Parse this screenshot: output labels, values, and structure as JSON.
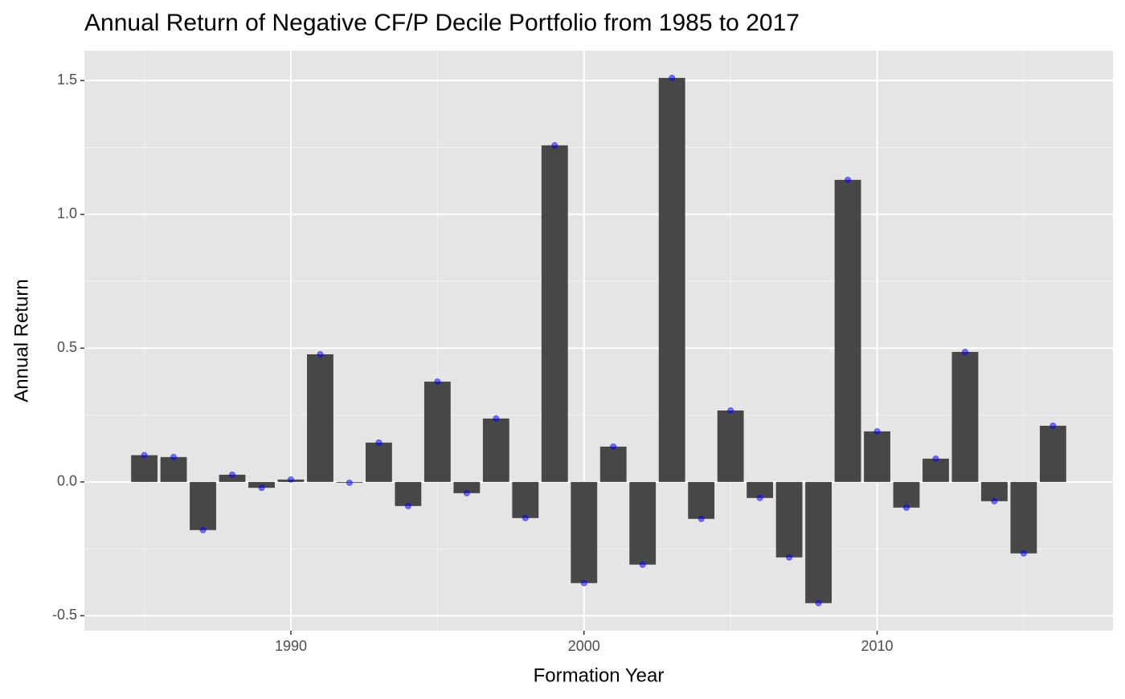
{
  "chart_data": {
    "type": "bar",
    "title": "Annual Return of Negative CF/P Decile Portfolio from 1985 to 2017",
    "x_label": "Formation Year",
    "y_label": "Annual Return",
    "x": [
      1985,
      1986,
      1987,
      1988,
      1989,
      1990,
      1991,
      1992,
      1993,
      1994,
      1995,
      1996,
      1997,
      1998,
      1999,
      2000,
      2001,
      2002,
      2003,
      2004,
      2005,
      2006,
      2007,
      2008,
      2009,
      2010,
      2011,
      2012,
      2013,
      2014,
      2015,
      2016
    ],
    "values": [
      0.1,
      0.093,
      -0.18,
      0.027,
      -0.022,
      0.009,
      0.477,
      -0.003,
      0.147,
      -0.09,
      0.375,
      -0.042,
      0.237,
      -0.135,
      1.258,
      -0.378,
      0.132,
      -0.309,
      1.51,
      -0.138,
      0.267,
      -0.06,
      -0.282,
      -0.453,
      1.129,
      0.189,
      -0.096,
      0.087,
      0.486,
      -0.072,
      -0.267,
      0.21
    ],
    "color": "#474747",
    "point_color": "#0000ff",
    "bar_width": 0.9,
    "xlim": [
      1982.955,
      2018.045
    ],
    "xticks": [
      1990,
      2000,
      2010
    ],
    "x_minor_ticks": [
      1985,
      1995,
      2005,
      2015
    ],
    "ylim": [
      -0.556,
      1.612
    ],
    "yticks": [
      {
        "value": -0.5,
        "label": "-0.5"
      },
      {
        "value": 0,
        "label": "0.0"
      },
      0.5,
      {
        "value": 1,
        "label": "1.0"
      },
      1.5
    ],
    "y_minor_ticks": [
      -0.25,
      0.25,
      0.75,
      1.25
    ],
    "grid": true
  }
}
